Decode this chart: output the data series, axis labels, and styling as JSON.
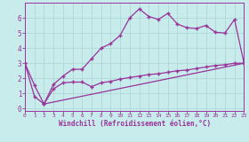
{
  "background_color": "#c8ecec",
  "grid_color": "#b0d8d8",
  "line_color": "#993399",
  "xlabel": "Windchill (Refroidissement éolien,°C)",
  "xlim": [
    0,
    23
  ],
  "ylim": [
    -0.15,
    7.0
  ],
  "yticks": [
    0,
    1,
    2,
    3,
    4,
    5,
    6
  ],
  "xticks": [
    0,
    1,
    2,
    3,
    4,
    5,
    6,
    7,
    8,
    9,
    10,
    11,
    12,
    13,
    14,
    15,
    16,
    17,
    18,
    19,
    20,
    21,
    22,
    23
  ],
  "line1_x": [
    0,
    1,
    2,
    3,
    4,
    5,
    6,
    7,
    8,
    9,
    10,
    11,
    12,
    13,
    14,
    15,
    16,
    17,
    18,
    19,
    20,
    21,
    22,
    23
  ],
  "line1_y": [
    3.0,
    0.8,
    0.3,
    1.6,
    2.15,
    2.6,
    2.6,
    3.3,
    4.0,
    4.3,
    4.85,
    6.0,
    6.6,
    6.1,
    5.9,
    6.3,
    5.6,
    5.35,
    5.3,
    5.5,
    5.05,
    5.0,
    5.9,
    3.0
  ],
  "line2_x": [
    0,
    1,
    2,
    3,
    4,
    5,
    6,
    7,
    8,
    9,
    10,
    11,
    12,
    13,
    14,
    15,
    16,
    17,
    18,
    19,
    20,
    21,
    22,
    23
  ],
  "line2_y": [
    3.0,
    1.55,
    0.3,
    1.3,
    1.7,
    1.75,
    1.75,
    1.45,
    1.7,
    1.8,
    1.95,
    2.05,
    2.15,
    2.25,
    2.3,
    2.4,
    2.5,
    2.55,
    2.65,
    2.75,
    2.85,
    2.9,
    3.0,
    3.0
  ],
  "line3_x": [
    2,
    23
  ],
  "line3_y": [
    0.3,
    3.0
  ],
  "marker": "+",
  "markersize": 3.5,
  "linewidth": 0.9
}
